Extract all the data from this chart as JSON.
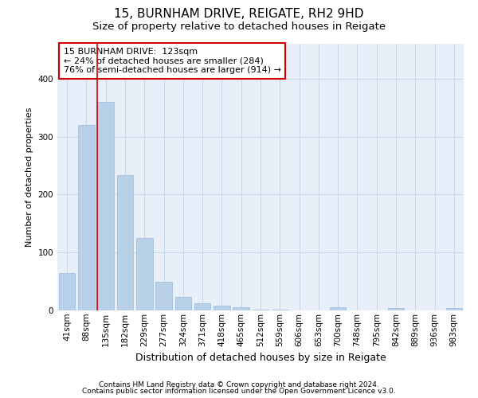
{
  "title1": "15, BURNHAM DRIVE, REIGATE, RH2 9HD",
  "title2": "Size of property relative to detached houses in Reigate",
  "xlabel": "Distribution of detached houses by size in Reigate",
  "ylabel": "Number of detached properties",
  "categories": [
    "41sqm",
    "88sqm",
    "135sqm",
    "182sqm",
    "229sqm",
    "277sqm",
    "324sqm",
    "371sqm",
    "418sqm",
    "465sqm",
    "512sqm",
    "559sqm",
    "606sqm",
    "653sqm",
    "700sqm",
    "748sqm",
    "795sqm",
    "842sqm",
    "889sqm",
    "936sqm",
    "983sqm"
  ],
  "values": [
    65,
    320,
    360,
    233,
    125,
    50,
    23,
    13,
    8,
    5,
    2,
    1,
    0,
    0,
    5,
    0,
    0,
    4,
    0,
    0,
    4
  ],
  "bar_color": "#b8d0e8",
  "bar_edge_color": "#9ab8d8",
  "grid_color": "#c8d8e8",
  "background_color": "#e8eff8",
  "vline_color": "#cc0000",
  "annotation_title": "15 BURNHAM DRIVE:  123sqm",
  "annotation_line1": "← 24% of detached houses are smaller (284)",
  "annotation_line2": "76% of semi-detached houses are larger (914) →",
  "annotation_box_color": "#ffffff",
  "annotation_box_edge_color": "#cc0000",
  "footer1": "Contains HM Land Registry data © Crown copyright and database right 2024.",
  "footer2": "Contains public sector information licensed under the Open Government Licence v3.0.",
  "ylim": [
    0,
    460
  ],
  "title1_fontsize": 11,
  "title2_fontsize": 9.5,
  "xlabel_fontsize": 9,
  "ylabel_fontsize": 8,
  "tick_fontsize": 7.5,
  "annotation_fontsize": 8,
  "footer_fontsize": 6.5
}
